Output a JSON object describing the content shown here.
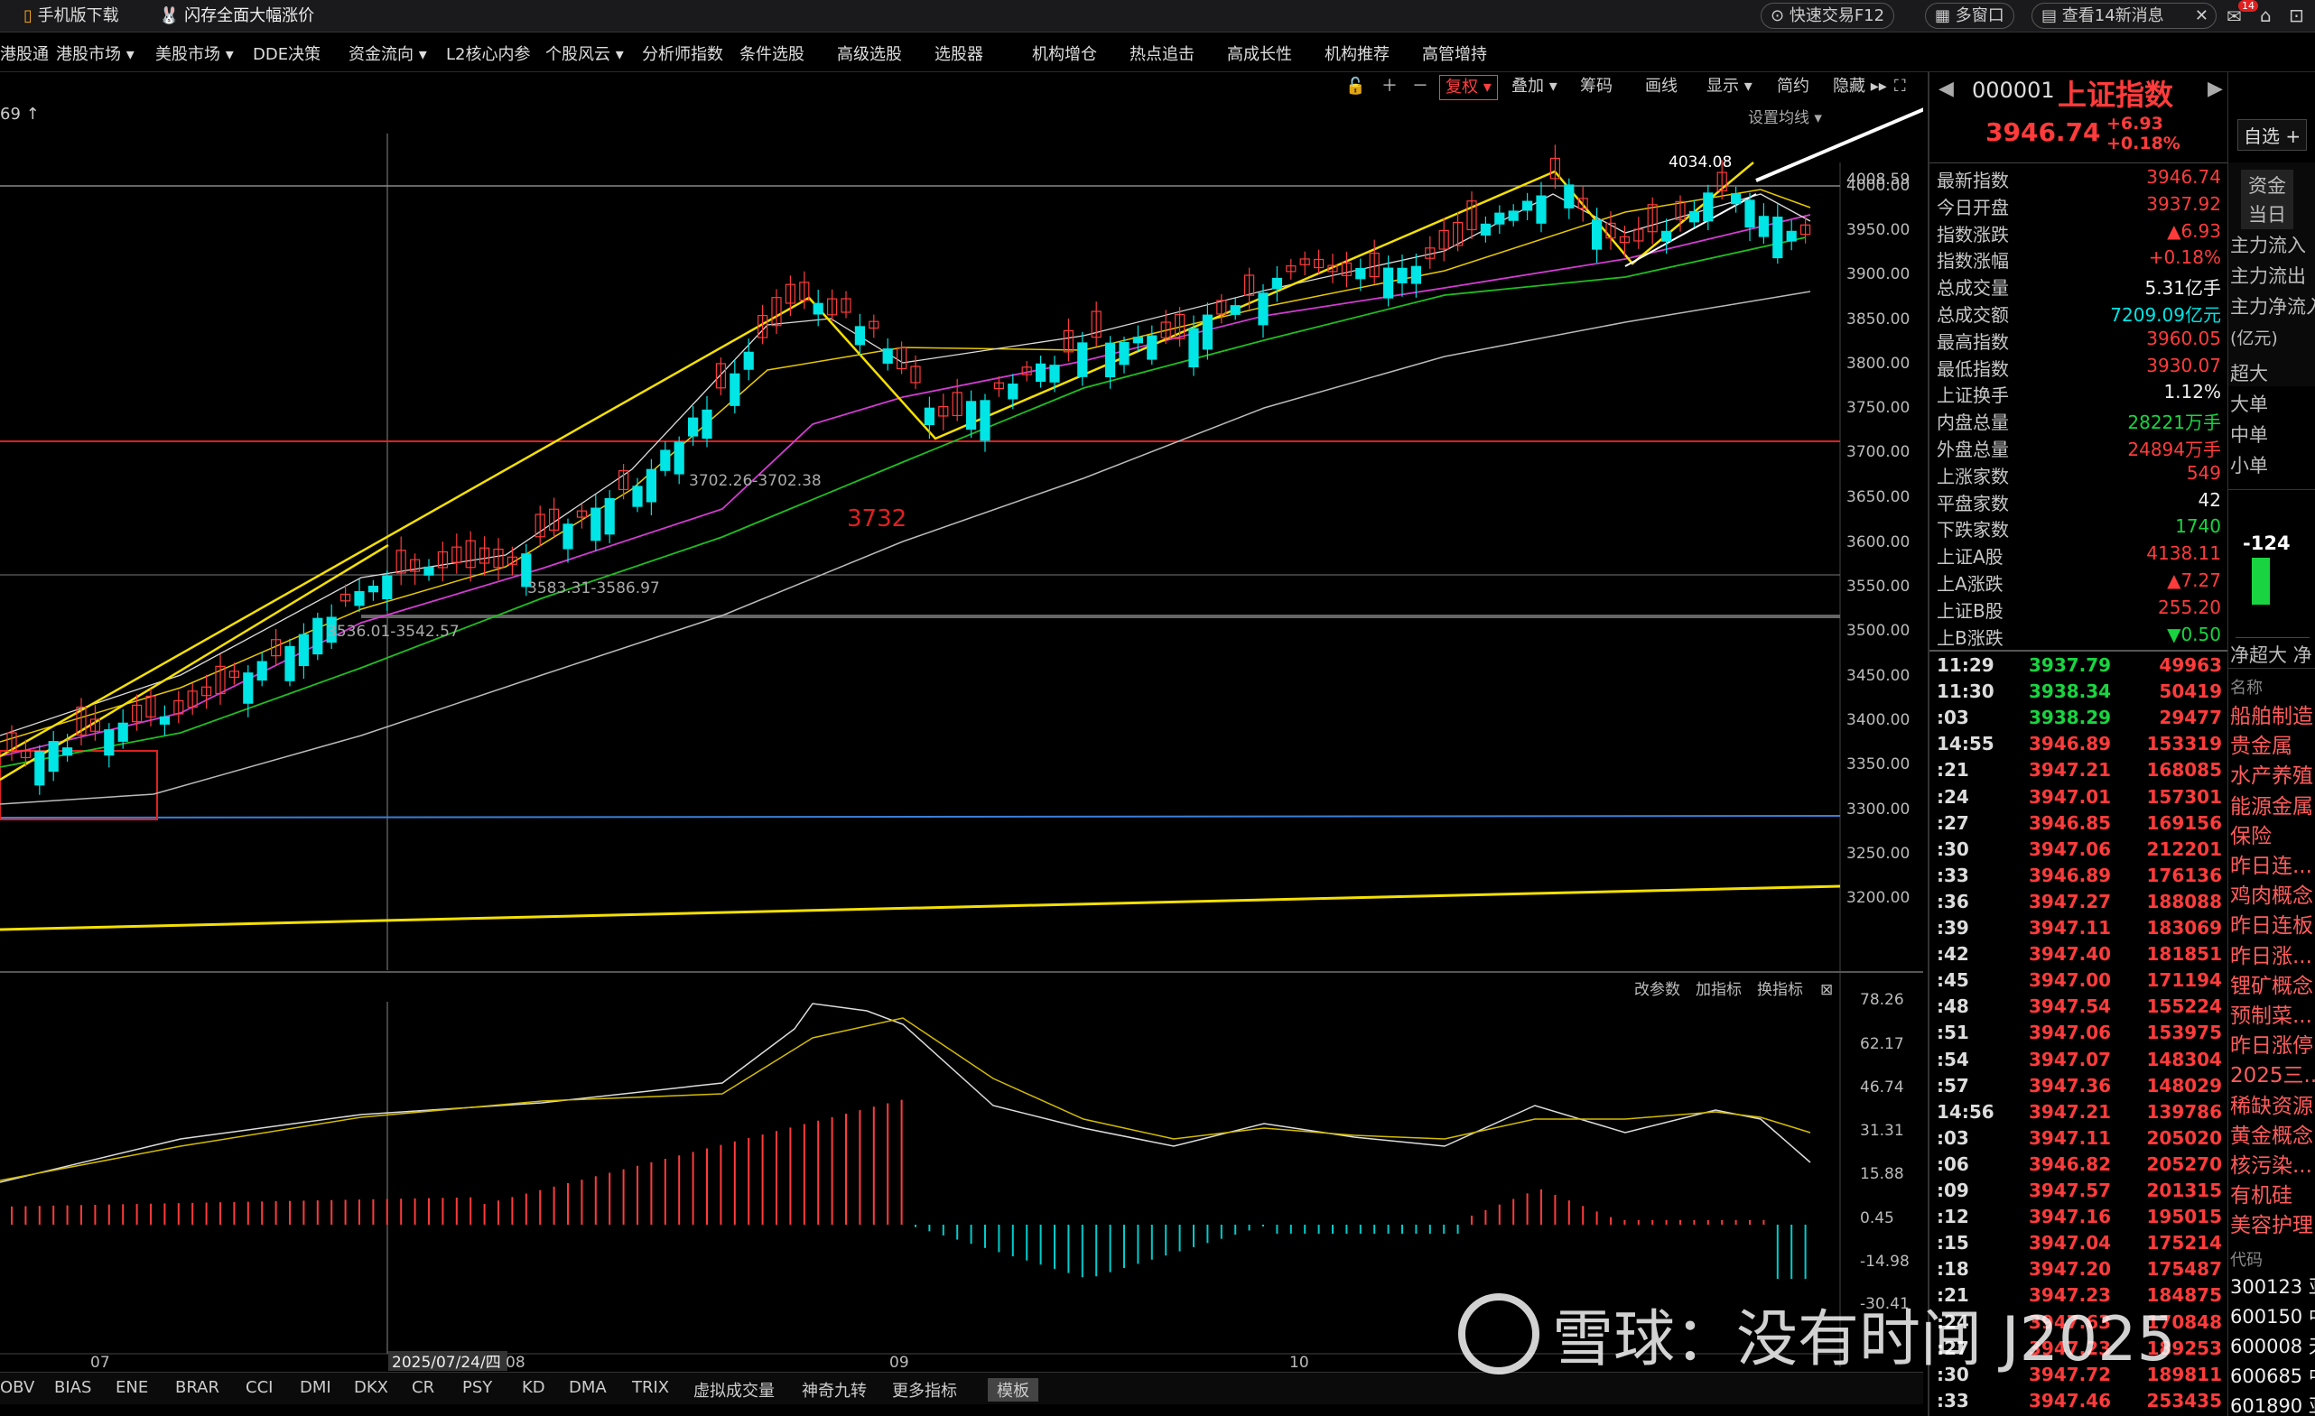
{
  "topbar": {
    "mobile": "手机版下载",
    "promo": "闪存全面大幅涨价",
    "fast_trade": "快速交易F12",
    "multi_window": "多窗口",
    "news": "查看14新消息",
    "badge": "14"
  },
  "menu": [
    "港股通",
    "港股市场 ▾",
    "美股市场 ▾",
    "DDE决策",
    "资金流向 ▾",
    "L2核心内参",
    "个股风云 ▾",
    "分析师指数",
    "条件选股",
    "高级选股",
    "选股器",
    "机构增仓",
    "热点追击",
    "高成长性",
    "机构推荐",
    "高管增持"
  ],
  "chart_toolbar": {
    "fuquan": "复权 ▾",
    "overlay": "叠加 ▾",
    "chips": "筹码",
    "draw": "画线",
    "display": "显示 ▾",
    "simple": "简约",
    "hide": "隐藏 ▸▸",
    "set_ma": "设置均线 ▾"
  },
  "chart_top_left": "69 ↑",
  "chart_data": {
    "type": "candlestick",
    "title": "上证指数",
    "y_ticks": [
      "4008.59",
      "4000.00",
      "3950.00",
      "3900.00",
      "3850.00",
      "3800.00",
      "3750.00",
      "3700.00",
      "3650.00",
      "3600.00",
      "3550.00",
      "3500.00",
      "3450.00",
      "3400.00",
      "3350.00",
      "3300.00",
      "3250.00",
      "3200.00"
    ],
    "x_labels": [
      "07",
      "2025/07/24/四",
      "08",
      "09",
      "10"
    ],
    "annotations": {
      "peak": "4034.08",
      "level": "3732",
      "range1": "3702.26-3702.38",
      "range2": "3583.31-3586.97",
      "range3": "3536.01-3542.57"
    },
    "indicator": {
      "y_ticks": [
        "78.26",
        "62.17",
        "46.74",
        "31.31",
        "15.88",
        "0.45",
        "-14.98",
        "-30.41"
      ],
      "controls": [
        "改参数",
        "加指标",
        "换指标"
      ]
    }
  },
  "ind_tabs": [
    "OBV",
    "BIAS",
    "ENE",
    "BRAR",
    "CCI",
    "DMI",
    "DKX",
    "CR",
    "PSY",
    "KD",
    "DMA",
    "TRIX",
    "虚拟成交量",
    "神奇九转",
    "更多指标",
    "模板"
  ],
  "quote": {
    "code": "000001",
    "name": "上证指数",
    "price": "3946.74",
    "change": "+6.93",
    "pct": "+0.18%"
  },
  "stats": [
    {
      "label": "最新指数",
      "value": "3946.74",
      "c": "red"
    },
    {
      "label": "今日开盘",
      "value": "3937.92",
      "c": "red"
    },
    {
      "label": "指数涨跌",
      "value": "▲6.93",
      "c": "red"
    },
    {
      "label": "指数涨幅",
      "value": "+0.18%",
      "c": "red"
    },
    {
      "label": "总成交量",
      "value": "5.31亿手",
      "c": "white"
    },
    {
      "label": "总成交额",
      "value": "7209.09亿元",
      "c": "cyan"
    },
    {
      "label": "最高指数",
      "value": "3960.05",
      "c": "red"
    },
    {
      "label": "最低指数",
      "value": "3930.07",
      "c": "red"
    },
    {
      "label": "上证换手",
      "value": "1.12%",
      "c": "white"
    },
    {
      "label": "内盘总量",
      "value": "28221万手",
      "c": "green"
    },
    {
      "label": "外盘总量",
      "value": "24894万手",
      "c": "red"
    },
    {
      "label": "上涨家数",
      "value": "549",
      "c": "red"
    },
    {
      "label": "平盘家数",
      "value": "42",
      "c": "white"
    },
    {
      "label": "下跌家数",
      "value": "1740",
      "c": "green"
    },
    {
      "label": "上证A股",
      "value": "4138.11",
      "c": "red"
    },
    {
      "label": "上A涨跌",
      "value": "▲7.27",
      "c": "red"
    },
    {
      "label": "上证B股",
      "value": "255.20",
      "c": "red"
    },
    {
      "label": "上B涨跌",
      "value": "▼0.50",
      "c": "green"
    }
  ],
  "ticks": [
    {
      "t": "11:29",
      "p": "3937.79",
      "q": "49963",
      "pc": "green",
      "qc": "red"
    },
    {
      "t": "11:30",
      "p": "3938.34",
      "q": "50419",
      "pc": "green",
      "qc": "red"
    },
    {
      "t": ":03",
      "p": "3938.29",
      "q": "29477",
      "pc": "green",
      "qc": "red"
    },
    {
      "t": "14:55",
      "p": "3946.89",
      "q": "153319",
      "pc": "red",
      "qc": "red"
    },
    {
      "t": ":21",
      "p": "3947.21",
      "q": "168085",
      "pc": "red",
      "qc": "red"
    },
    {
      "t": ":24",
      "p": "3947.01",
      "q": "157301",
      "pc": "red",
      "qc": "red"
    },
    {
      "t": ":27",
      "p": "3946.85",
      "q": "169156",
      "pc": "red",
      "qc": "red"
    },
    {
      "t": ":30",
      "p": "3947.06",
      "q": "212201",
      "pc": "red",
      "qc": "red"
    },
    {
      "t": ":33",
      "p": "3946.89",
      "q": "176136",
      "pc": "red",
      "qc": "red"
    },
    {
      "t": ":36",
      "p": "3947.27",
      "q": "188088",
      "pc": "red",
      "qc": "red"
    },
    {
      "t": ":39",
      "p": "3947.11",
      "q": "183069",
      "pc": "red",
      "qc": "red"
    },
    {
      "t": ":42",
      "p": "3947.40",
      "q": "181851",
      "pc": "red",
      "qc": "red"
    },
    {
      "t": ":45",
      "p": "3947.00",
      "q": "171194",
      "pc": "red",
      "qc": "red"
    },
    {
      "t": ":48",
      "p": "3947.54",
      "q": "155224",
      "pc": "red",
      "qc": "red"
    },
    {
      "t": ":51",
      "p": "3947.06",
      "q": "153975",
      "pc": "red",
      "qc": "red"
    },
    {
      "t": ":54",
      "p": "3947.07",
      "q": "148304",
      "pc": "red",
      "qc": "red"
    },
    {
      "t": ":57",
      "p": "3947.36",
      "q": "148029",
      "pc": "red",
      "qc": "red"
    },
    {
      "t": "14:56",
      "p": "3947.21",
      "q": "139786",
      "pc": "red",
      "qc": "red"
    },
    {
      "t": ":03",
      "p": "3947.11",
      "q": "205020",
      "pc": "red",
      "qc": "red"
    },
    {
      "t": ":06",
      "p": "3946.82",
      "q": "205270",
      "pc": "red",
      "qc": "red"
    },
    {
      "t": ":09",
      "p": "3947.57",
      "q": "201315",
      "pc": "red",
      "qc": "red"
    },
    {
      "t": ":12",
      "p": "3947.16",
      "q": "195015",
      "pc": "red",
      "qc": "red"
    },
    {
      "t": ":15",
      "p": "3947.04",
      "q": "175214",
      "pc": "red",
      "qc": "red"
    },
    {
      "t": ":18",
      "p": "3947.20",
      "q": "175487",
      "pc": "red",
      "qc": "red"
    },
    {
      "t": ":21",
      "p": "3947.23",
      "q": "184875",
      "pc": "red",
      "qc": "red"
    },
    {
      "t": ":24",
      "p": "3947.63",
      "q": "170848",
      "pc": "red",
      "qc": "red"
    },
    {
      "t": ":27",
      "p": "3947.23",
      "q": "189253",
      "pc": "red",
      "qc": "red"
    },
    {
      "t": ":30",
      "p": "3947.72",
      "q": "189811",
      "pc": "red",
      "qc": "red"
    },
    {
      "t": ":33",
      "p": "3947.46",
      "q": "253435",
      "pc": "red",
      "qc": "red"
    }
  ],
  "far": {
    "zixuan": "自选 +",
    "items": [
      "资金",
      "当日",
      "主力流入",
      "主力流出",
      "主力净流入",
      "(亿元)",
      "超大",
      "大单",
      "中单",
      "小单"
    ],
    "flow": "-124",
    "flow_label": "净超大 净",
    "name_hdr": "名称",
    "sectors": [
      "船舶制造",
      "贵金属",
      "水产养殖",
      "能源金属",
      "保险",
      "昨日连...",
      "鸡肉概念",
      "昨日连板",
      "昨日涨...",
      "锂矿概念",
      "预制菜...",
      "昨日涨停",
      "2025三...",
      "稀缺资源",
      "黄金概念",
      "核污染...",
      "有机硅",
      "美容护理"
    ],
    "code_hdr": "代码",
    "codes": [
      "300123 亚",
      "600150 中",
      "600008 天",
      "600685 中",
      "601890 亚"
    ]
  },
  "watermark": "雪球：没有时间 J2025"
}
